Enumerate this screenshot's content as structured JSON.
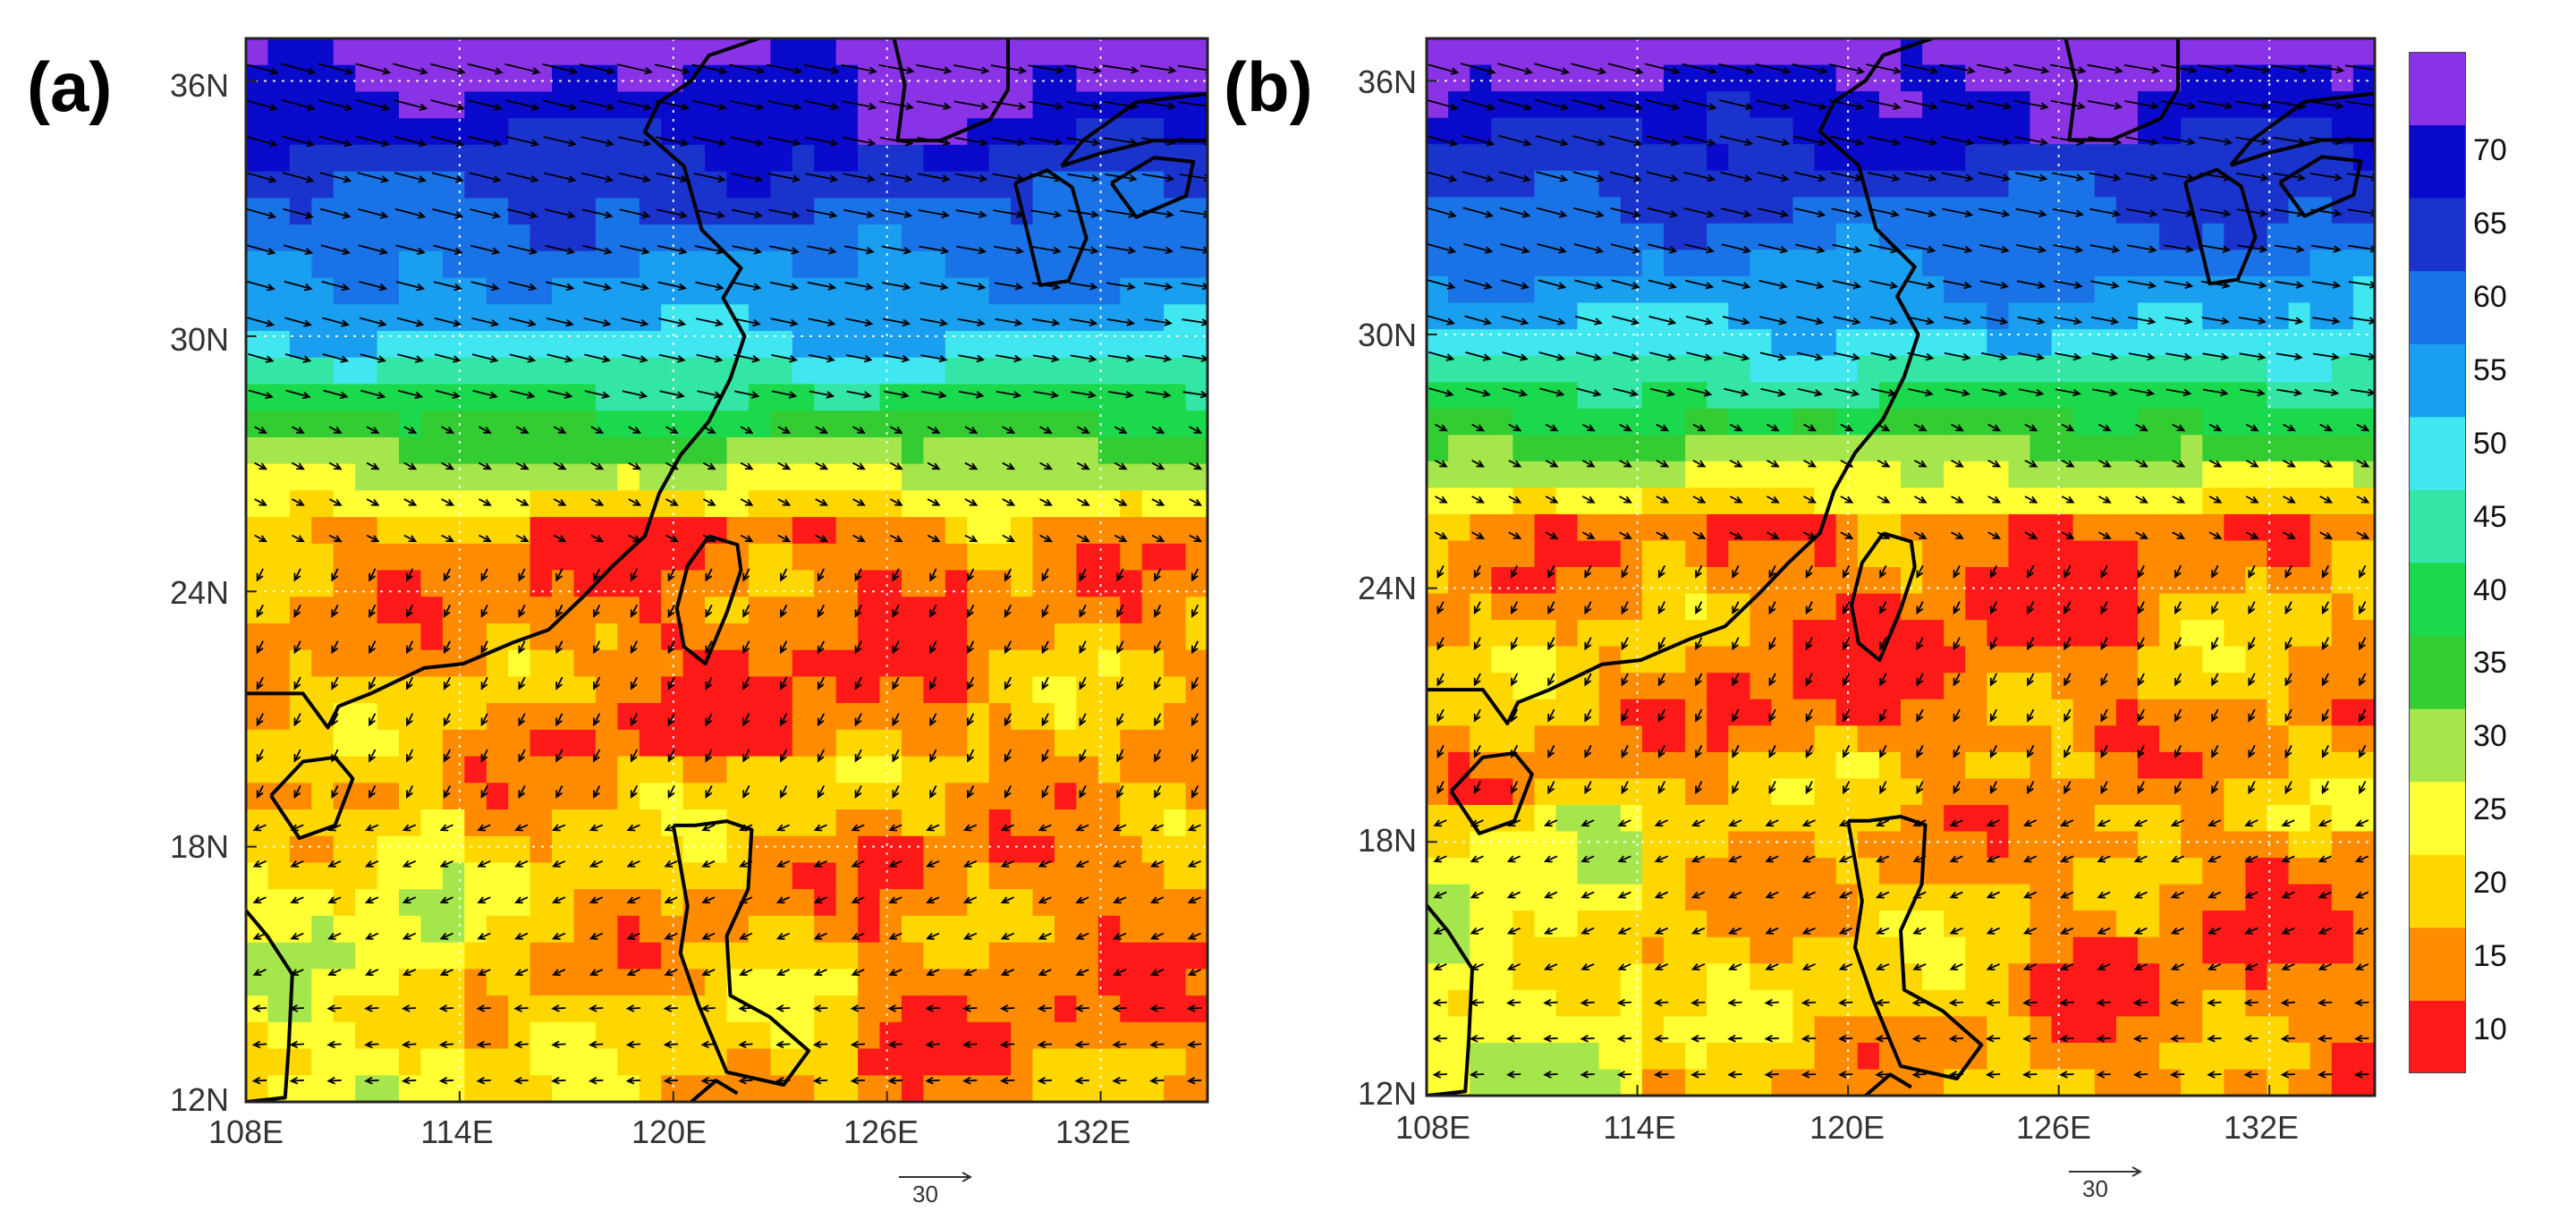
{
  "figure": {
    "panels": [
      {
        "id": "a",
        "label": "(a)"
      },
      {
        "id": "b",
        "label": "(b)"
      }
    ],
    "axes": {
      "lat_ticks": [
        "12N",
        "18N",
        "24N",
        "30N",
        "36N"
      ],
      "lon_ticks": [
        "108E",
        "114E",
        "120E",
        "126E",
        "132E"
      ],
      "lat_range": [
        12,
        37
      ],
      "lon_range": [
        108,
        135
      ],
      "gridlines": "dotted white"
    },
    "vector_reference": {
      "label": "30"
    },
    "colorbar": {
      "levels": [
        "10",
        "15",
        "20",
        "25",
        "30",
        "35",
        "40",
        "45",
        "50",
        "55",
        "60",
        "65",
        "70"
      ],
      "colors": [
        "#ff1a1a",
        "#ff8c00",
        "#ffd700",
        "#ffff33",
        "#a6e64d",
        "#33cc33",
        "#1ad94d",
        "#33e6a6",
        "#40e6f0",
        "#1a9ef0",
        "#1a73e6",
        "#1a33cc",
        "#0a0acc",
        "#8a33e6"
      ],
      "placement": "right"
    },
    "colors": {
      "land_outline": "#000000",
      "arrow": "#000000",
      "grid": "#ffffff"
    }
  }
}
